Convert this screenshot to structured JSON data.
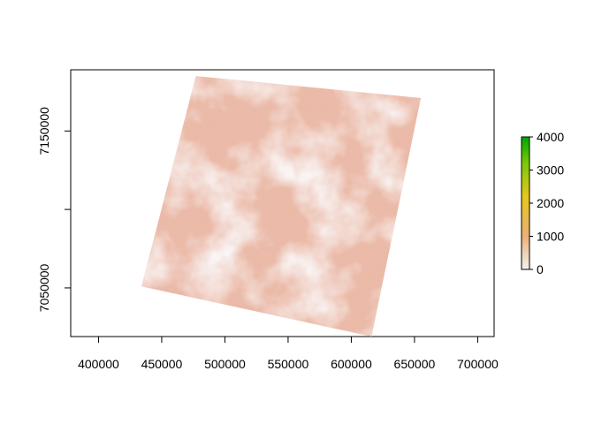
{
  "chart_data": {
    "type": "heatmap",
    "title": "",
    "xlabel": "",
    "ylabel": "",
    "xlim": [
      378000,
      713000
    ],
    "ylim": [
      7019000,
      7189000
    ],
    "x_ticks": [
      400000,
      450000,
      500000,
      550000,
      600000,
      650000,
      700000
    ],
    "x_tick_labels": [
      "400000",
      "450000",
      "500000",
      "550000",
      "600000",
      "650000",
      "700000"
    ],
    "y_ticks": [
      7050000,
      7100000,
      7150000
    ],
    "y_tick_labels": [
      "7050000",
      "",
      "7150000"
    ],
    "raster_footprint": {
      "corners": [
        {
          "x": 477000,
          "y": 7185000
        },
        {
          "x": 655000,
          "y": 7171000
        },
        {
          "x": 616000,
          "y": 7019000
        },
        {
          "x": 434000,
          "y": 7051000
        }
      ]
    },
    "colorbar": {
      "min": 0,
      "max": 4000,
      "ticks": [
        0,
        1000,
        2000,
        3000,
        4000
      ],
      "tick_labels": [
        "0",
        "1000",
        "2000",
        "3000",
        "4000"
      ],
      "colors": [
        "#f2f2f2",
        "#ecb176",
        "#e6c61e",
        "#7ac90a",
        "#00a600"
      ]
    },
    "grid": false,
    "legend": "right"
  }
}
